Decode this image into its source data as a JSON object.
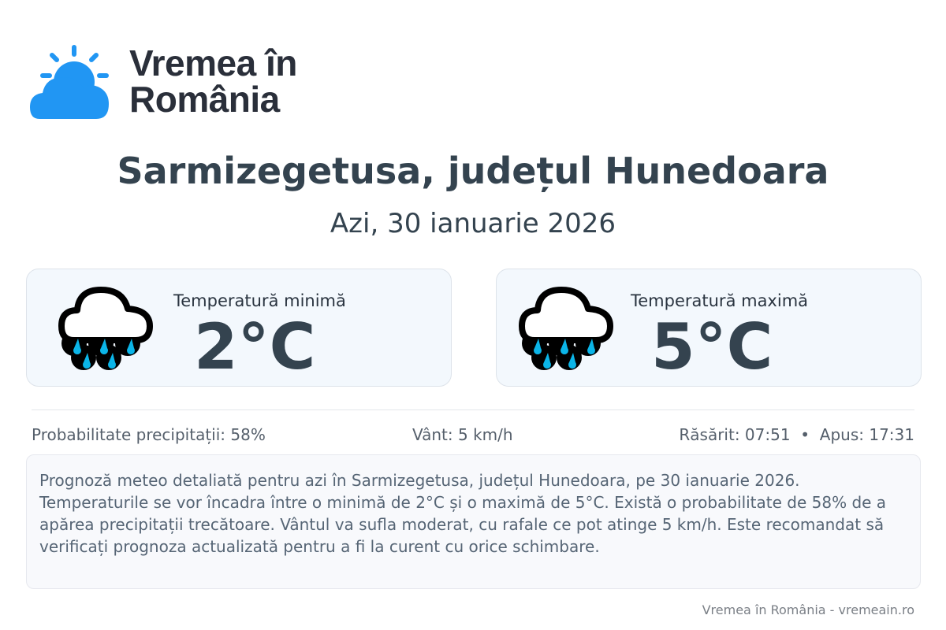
{
  "logo": {
    "line1": "Vremea în",
    "line2": "România",
    "brand_color": "#2196f3"
  },
  "location_title": "Sarmizegetusa, județul Hunedoara",
  "date": "Azi, 30 ianuarie 2026",
  "cards": [
    {
      "label": "Temperatură minimă",
      "value": "2°C",
      "icon": "rain-cloud-icon"
    },
    {
      "label": "Temperatură maximă",
      "value": "5°C",
      "icon": "rain-cloud-icon"
    }
  ],
  "stats": {
    "precip": "Probabilitate precipitații: 58%",
    "wind": "Vânt: 5 km/h",
    "sun": "Răsărit: 07:51  •  Apus: 17:31"
  },
  "description": "Prognoză meteo detaliată pentru azi în Sarmizegetusa, județul Hunedoara, pe 30 ianuarie 2026. Temperaturile se vor încadra între o minimă de 2°C și o maximă de 5°C. Există o probabilitate de 58% de a apărea precipitații trecătoare. Vântul va sufla moderat, cu rafale ce pot atinge 5 km/h. Este recomandat să verificați prognoza actualizată pentru a fi la curent cu orice schimbare.",
  "footer": "Vremea în România - vremeain.ro"
}
